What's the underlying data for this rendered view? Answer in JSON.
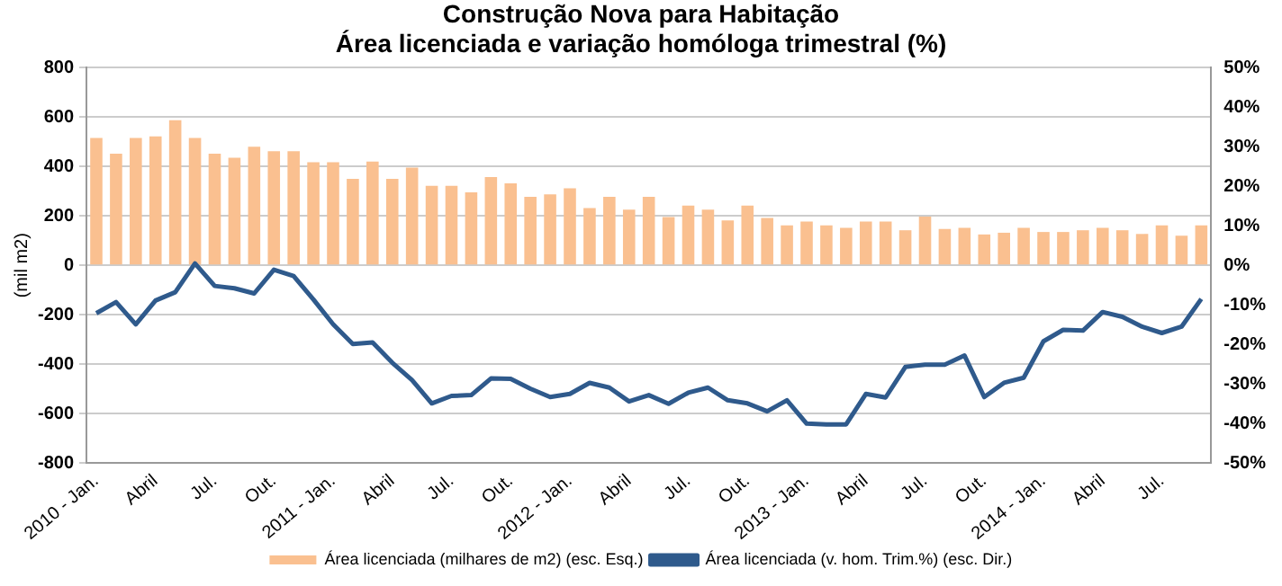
{
  "chart_data": {
    "type": "bar",
    "title": "Construção Nova para Habitação",
    "subtitle": "Área licenciada e variação homóloga trimestral (%)",
    "ylabel": "(mil m2)",
    "categories": [
      "2010 - Jan.",
      null,
      null,
      "Abril",
      null,
      null,
      "Jul.",
      null,
      null,
      "Out.",
      null,
      null,
      "2011 - Jan.",
      null,
      null,
      "Abril",
      null,
      null,
      "Jul.",
      null,
      null,
      "Out.",
      null,
      null,
      "2012 - Jan.",
      null,
      null,
      "Abril",
      null,
      null,
      "Jul.",
      null,
      null,
      "Out.",
      null,
      null,
      "2013 - Jan.",
      null,
      null,
      "Abril",
      null,
      null,
      "Jul.",
      null,
      null,
      "Out.",
      null,
      null,
      "2014 - Jan.",
      null,
      null,
      "Abril",
      null,
      null,
      "Jul.",
      null,
      null
    ],
    "series": [
      {
        "name": "Área licenciada (milhares de m2) (esc. Esq.)",
        "color": "#fac090",
        "values": [
          515,
          452,
          515,
          522,
          587,
          515,
          452,
          435,
          480,
          462,
          462,
          417,
          417,
          350,
          420,
          350,
          395,
          322,
          322,
          295,
          357,
          332,
          277,
          287,
          312,
          232,
          277,
          225,
          277,
          195,
          242,
          225,
          182,
          242,
          192,
          162,
          177,
          162,
          152,
          177,
          177,
          142,
          197,
          147,
          152,
          125,
          132,
          152,
          135,
          135,
          142,
          152,
          142,
          127,
          162,
          120,
          162
        ]
      },
      {
        "name": "Área licenciada (v. hom. Trim.%) (esc. Dir.)",
        "type": "line",
        "axis": "y2",
        "color": "#2f5a8c",
        "values": [
          -12.1,
          -9.3,
          -14.9,
          -8.9,
          -6.8,
          0.5,
          -5.2,
          -5.8,
          -7.1,
          -1.1,
          -2.7,
          -8.6,
          -14.9,
          -19.9,
          -19.5,
          -24.6,
          -29.0,
          -34.9,
          -33.0,
          -32.8,
          -28.6,
          -28.7,
          -31.2,
          -33.3,
          -32.5,
          -29.7,
          -30.9,
          -34.4,
          -32.8,
          -35.0,
          -32.2,
          -30.9,
          -34.1,
          -34.9,
          -36.9,
          -34.1,
          -40.0,
          -40.2,
          -40.2,
          -32.5,
          -33.4,
          -25.7,
          -25.1,
          -25.1,
          -22.8,
          -33.3,
          -29.7,
          -28.4,
          -19.2,
          -16.3,
          -16.5,
          -11.8,
          -13.0,
          -15.5,
          -17.1,
          -15.5,
          -8.5
        ]
      }
    ],
    "ylim": [
      -800,
      800
    ],
    "yticks": [
      -800,
      -600,
      -400,
      -200,
      0,
      200,
      400,
      600,
      800
    ],
    "y2lim": [
      -50,
      50
    ],
    "y2ticks": [
      {
        "value": -50,
        "label": "-50%"
      },
      {
        "value": -40,
        "label": "-40%"
      },
      {
        "value": -30,
        "label": "-30%"
      },
      {
        "value": -20,
        "label": "-20%"
      },
      {
        "value": -10,
        "label": "-10%"
      },
      {
        "value": 0,
        "label": "0%"
      },
      {
        "value": 10,
        "label": "10%"
      },
      {
        "value": 20,
        "label": "20%"
      },
      {
        "value": 30,
        "label": "30%"
      },
      {
        "value": 40,
        "label": "40%"
      },
      {
        "value": 50,
        "label": "50%"
      }
    ],
    "grid": "y",
    "legend": "bottom",
    "marker": "none",
    "line_style": "solid"
  }
}
